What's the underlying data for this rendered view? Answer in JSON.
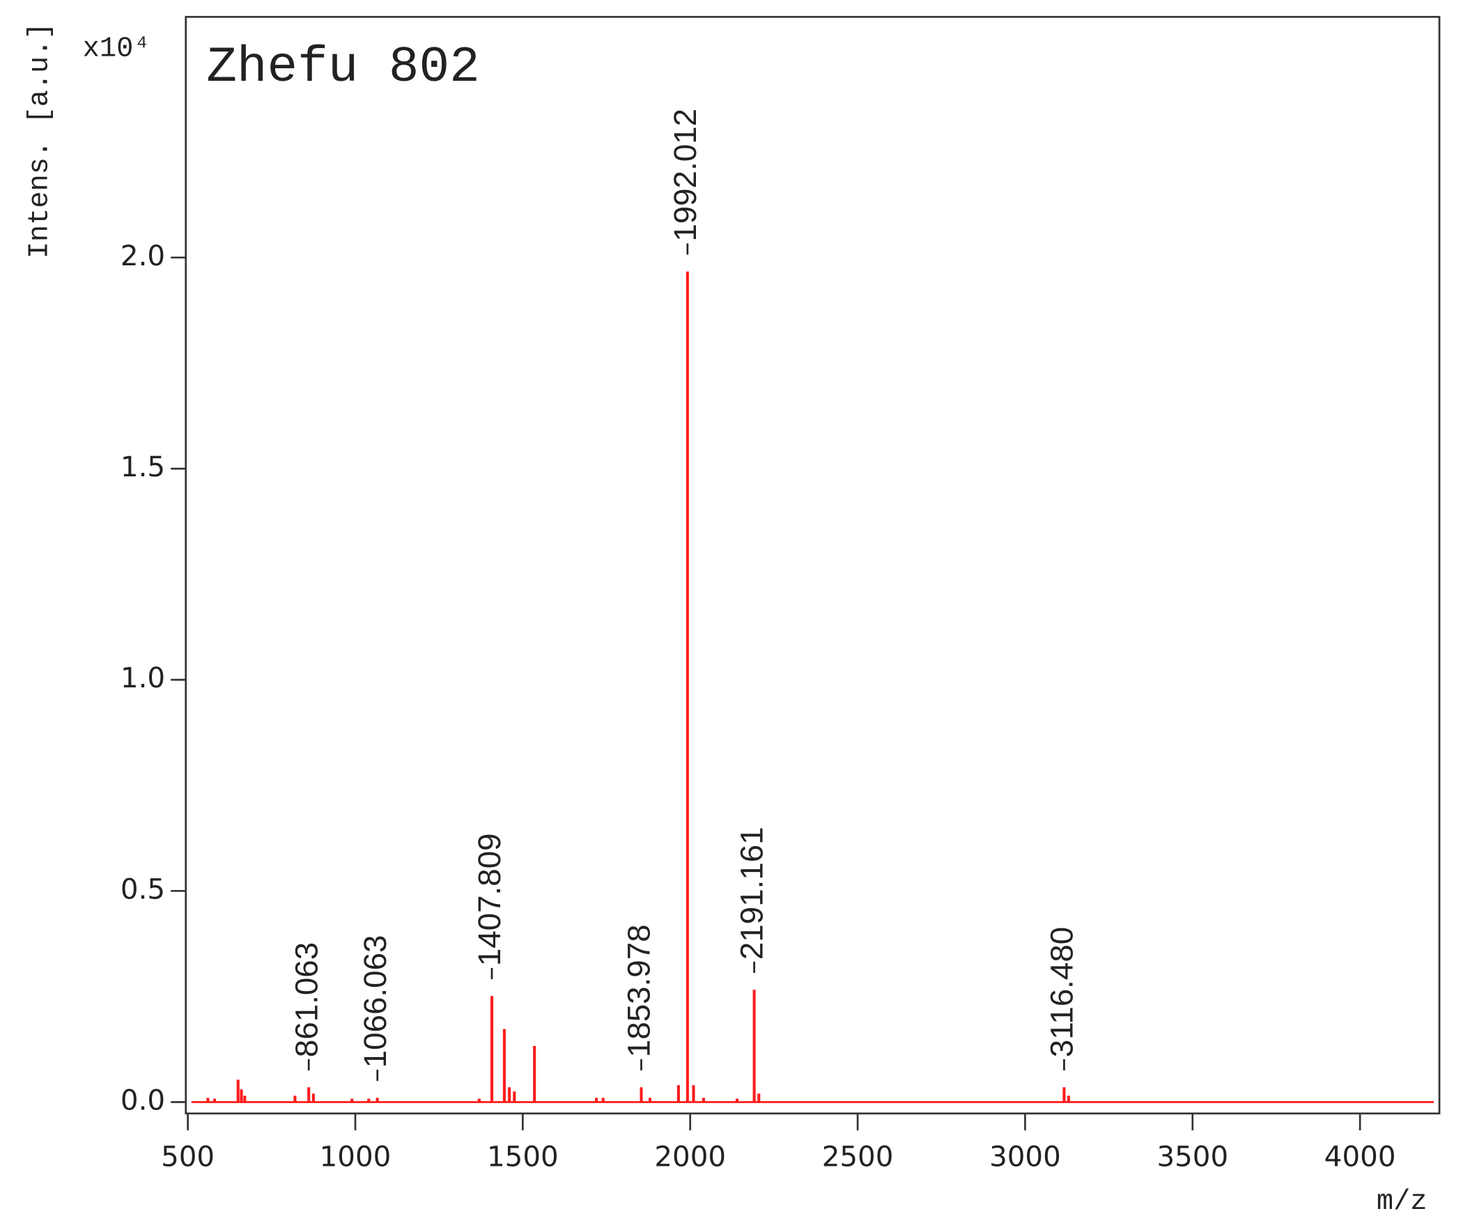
{
  "chart_data": {
    "type": "stem",
    "title": "Zhefu 802",
    "y_label": "Intens. [a.u.]",
    "y_multiplier": "x10⁴",
    "x_label": "m/z",
    "color": "#ff1a1a",
    "x": [
      560,
      580,
      650,
      660,
      670,
      820,
      861.063,
      875,
      990,
      1040,
      1066.063,
      1370,
      1407.809,
      1445,
      1460,
      1475,
      1535,
      1720,
      1740,
      1853.978,
      1880,
      1965,
      1992.012,
      2010,
      2040,
      2140,
      2191.161,
      2205,
      3116.48,
      3130
    ],
    "values": [
      0.01,
      0.008,
      0.053,
      0.03,
      0.015,
      0.015,
      0.035,
      0.02,
      0.008,
      0.008,
      0.01,
      0.008,
      0.251,
      0.173,
      0.035,
      0.025,
      0.133,
      0.01,
      0.01,
      0.035,
      0.01,
      0.04,
      1.967,
      0.04,
      0.01,
      0.008,
      0.266,
      0.02,
      0.035,
      0.015
    ],
    "peak_labels": [
      null,
      null,
      null,
      null,
      null,
      null,
      "861.063",
      null,
      null,
      null,
      "1066.063",
      null,
      "1407.809",
      null,
      null,
      null,
      null,
      null,
      null,
      "1853.978",
      null,
      null,
      "1992.012",
      null,
      null,
      null,
      "2191.161",
      null,
      "3116.480",
      null
    ],
    "xlim": [
      494,
      4237
    ],
    "xticks": [
      500,
      1000,
      1500,
      2000,
      2500,
      3000,
      3500,
      4000
    ],
    "ylim": [
      -0.027,
      2.57
    ],
    "yticks": [
      {
        "value": 0,
        "label": "0.0"
      },
      0.5,
      {
        "value": 1,
        "label": "1.0"
      },
      1.5,
      {
        "value": 2,
        "label": "2.0"
      }
    ]
  }
}
